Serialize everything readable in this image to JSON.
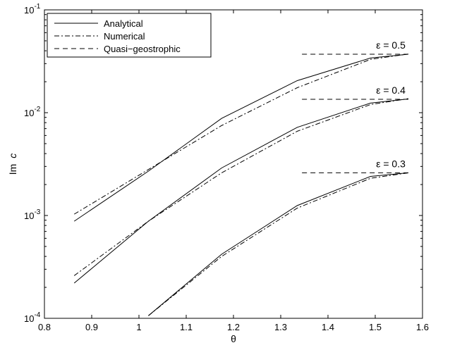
{
  "chart_data": {
    "type": "line",
    "xlabel": "θ",
    "ylabel_prefix": "Im",
    "ylabel_var": "c",
    "xlim": [
      0.8,
      1.6
    ],
    "ylim": [
      0.0001,
      0.1
    ],
    "y_scale": "log",
    "grid": false,
    "legend_position": "top-left",
    "x_ticks": [
      "0.8",
      "0.9",
      "1",
      "1.1",
      "1.2",
      "1.3",
      "1.4",
      "1.5",
      "1.6"
    ],
    "y_ticks": [
      {
        "base": "10",
        "exp": "-4"
      },
      {
        "base": "10",
        "exp": "-3"
      },
      {
        "base": "10",
        "exp": "-2"
      },
      {
        "base": "10",
        "exp": "-1"
      }
    ],
    "legend": [
      {
        "name": "Analytical",
        "style": "solid"
      },
      {
        "name": "Numerical",
        "style": "dashdot"
      },
      {
        "name": "Quasi−geostrophic",
        "style": "dashed"
      }
    ],
    "groups": [
      {
        "label": "ε = 0.5",
        "analytical": {
          "x": [
            0.863,
            1.02,
            1.175,
            1.335,
            1.49,
            1.57
          ],
          "y": [
            0.00088,
            0.0027,
            0.0088,
            0.0205,
            0.034,
            0.037
          ]
        },
        "numerical": {
          "x": [
            0.863,
            1.02,
            1.175,
            1.335,
            1.49,
            1.57
          ],
          "y": [
            0.00103,
            0.0028,
            0.0075,
            0.0175,
            0.033,
            0.0372
          ]
        },
        "qg_level": 0.037,
        "qg_x": [
          1.345,
          1.57
        ]
      },
      {
        "label": "ε = 0.4",
        "analytical": {
          "x": [
            0.863,
            1.02,
            1.175,
            1.335,
            1.49,
            1.57
          ],
          "y": [
            0.00022,
            0.00088,
            0.0029,
            0.0072,
            0.0124,
            0.0136
          ]
        },
        "numerical": {
          "x": [
            0.863,
            1.02,
            1.175,
            1.335,
            1.49,
            1.57
          ],
          "y": [
            0.00026,
            0.00088,
            0.0026,
            0.0066,
            0.012,
            0.0137
          ]
        },
        "qg_level": 0.0135,
        "qg_x": [
          1.345,
          1.57
        ]
      },
      {
        "label": "ε = 0.3",
        "analytical": {
          "x": [
            1.02,
            1.175,
            1.335,
            1.49,
            1.57
          ],
          "y": [
            0.000106,
            0.00042,
            0.00125,
            0.0024,
            0.0026
          ]
        },
        "numerical": {
          "x": [
            1.02,
            1.175,
            1.335,
            1.49,
            1.57
          ],
          "y": [
            0.000106,
            0.0004,
            0.00118,
            0.0023,
            0.0026
          ]
        },
        "qg_level": 0.0026,
        "qg_x": [
          1.345,
          1.57
        ]
      }
    ]
  }
}
